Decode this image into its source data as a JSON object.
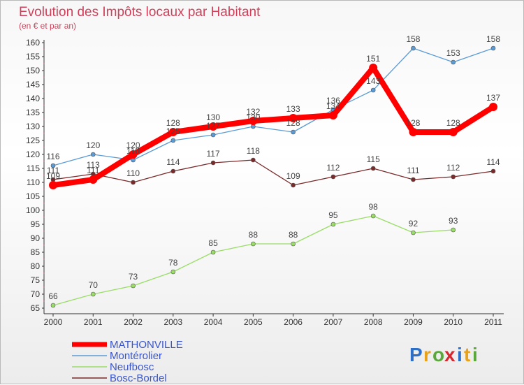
{
  "chart_data": {
    "type": "line",
    "title": "Evolution des Impôts locaux par Habitant",
    "subtitle": "(en € et par an)",
    "xlabel": "",
    "ylabel": "",
    "x": [
      "2000",
      "2001",
      "2002",
      "2003",
      "2004",
      "2005",
      "2006",
      "2007",
      "2008",
      "2009",
      "2010",
      "2011"
    ],
    "ylim": [
      65,
      160
    ],
    "y_ticks": [
      65,
      70,
      75,
      80,
      85,
      90,
      95,
      100,
      105,
      110,
      115,
      120,
      125,
      130,
      135,
      140,
      145,
      150,
      155,
      160
    ],
    "grid": false,
    "legend_position": "bottom-left",
    "series": [
      {
        "name": "MATHONVILLE",
        "color": "#ff0000",
        "width": 8,
        "values": [
          109,
          111,
          120,
          128,
          130,
          132,
          133,
          134,
          151,
          128,
          128,
          137
        ]
      },
      {
        "name": "Montérolier",
        "color": "#5b9bd5",
        "width": 1.3,
        "values": [
          116,
          120,
          118,
          125,
          127,
          130,
          128,
          136,
          143,
          158,
          153,
          158
        ]
      },
      {
        "name": "Neufbosc",
        "color": "#99dd66",
        "width": 1.3,
        "values": [
          66,
          70,
          73,
          78,
          85,
          88,
          88,
          95,
          98,
          92,
          93,
          null
        ]
      },
      {
        "name": "Bosc-Bordel",
        "color": "#7a2a2a",
        "width": 1.3,
        "values": [
          111,
          113,
          110,
          114,
          117,
          118,
          109,
          112,
          115,
          111,
          112,
          114
        ]
      }
    ]
  },
  "logo": {
    "text": "Proxiti",
    "letters": [
      "P",
      "r",
      "o",
      "x",
      "i",
      "t",
      "i"
    ],
    "colors": [
      "#2d6fc7",
      "#e8a11a",
      "#5aa83b",
      "#d7262e",
      "#2d6fc7",
      "#e8a11a",
      "#5aa83b"
    ]
  }
}
